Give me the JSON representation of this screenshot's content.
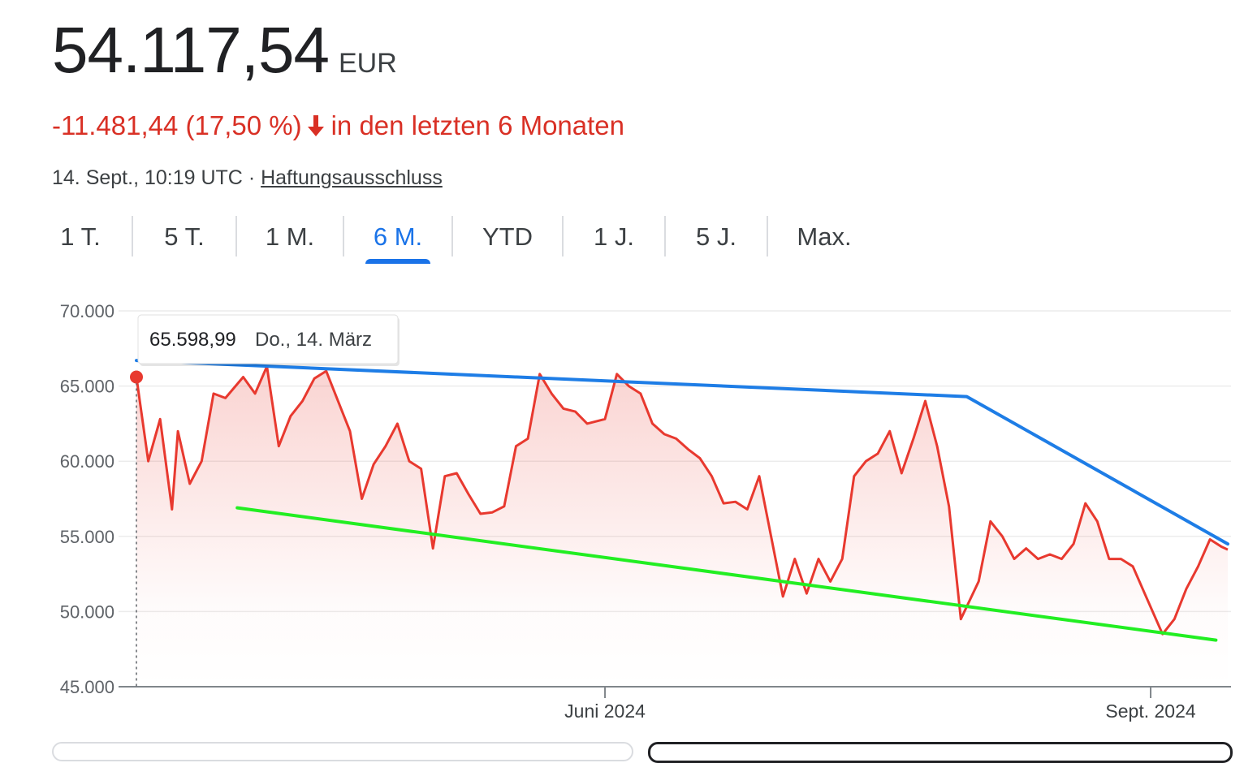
{
  "quote": {
    "price": "54.117,54",
    "currency": "EUR",
    "change": "-11.481,44 (17,50 %)",
    "period_text": "in den letzten 6 Monaten",
    "timestamp": "14. Sept., 10:19 UTC",
    "separator": "·",
    "disclaimer_label": "Haftungsausschluss"
  },
  "icons": {
    "change_arrow": "arrow-down-icon"
  },
  "colors": {
    "negative": "#d93025",
    "accent": "#1a73e8",
    "line": "#e8392f",
    "trend_upper": "#1e7de6",
    "trend_lower": "#22ee22"
  },
  "tabs": [
    {
      "label": "1 T."
    },
    {
      "label": "5 T."
    },
    {
      "label": "1 M."
    },
    {
      "label": "6 M.",
      "active": true
    },
    {
      "label": "YTD"
    },
    {
      "label": "1 J."
    },
    {
      "label": "5 J."
    },
    {
      "label": "Max."
    }
  ],
  "tooltip": {
    "value": "65.598,99",
    "date": "Do., 14. März"
  },
  "chart_data": {
    "type": "line",
    "title": "",
    "xlabel": "",
    "ylabel": "",
    "ylim": [
      45000,
      70000
    ],
    "y_ticks": [
      {
        "value": 70000,
        "label": "70.000"
      },
      {
        "value": 65000,
        "label": "65.000"
      },
      {
        "value": 60000,
        "label": "60.000"
      },
      {
        "value": 55000,
        "label": "55.000"
      },
      {
        "value": 50000,
        "label": "50.000"
      },
      {
        "value": 45000,
        "label": "45.000"
      }
    ],
    "x_range": [
      "2024-03-14",
      "2024-09-14"
    ],
    "x_ticks": [
      {
        "date": "2024-06-01",
        "label": "Juni 2024"
      },
      {
        "date": "2024-09-01",
        "label": "Sept. 2024"
      }
    ],
    "grid": true,
    "area_fill": true,
    "series": [
      {
        "x": [
          "2024-03-14",
          "2024-03-16",
          "2024-03-18",
          "2024-03-20",
          "2024-03-21",
          "2024-03-23",
          "2024-03-25",
          "2024-03-27",
          "2024-03-29",
          "2024-04-01",
          "2024-04-03",
          "2024-04-05",
          "2024-04-07",
          "2024-04-09",
          "2024-04-11",
          "2024-04-13",
          "2024-04-15",
          "2024-04-17",
          "2024-04-19",
          "2024-04-21",
          "2024-04-23",
          "2024-04-25",
          "2024-04-27",
          "2024-04-29",
          "2024-05-01",
          "2024-05-03",
          "2024-05-05",
          "2024-05-07",
          "2024-05-09",
          "2024-05-11",
          "2024-05-13",
          "2024-05-15",
          "2024-05-17",
          "2024-05-19",
          "2024-05-21",
          "2024-05-23",
          "2024-05-25",
          "2024-05-27",
          "2024-05-29",
          "2024-06-01",
          "2024-06-03",
          "2024-06-05",
          "2024-06-07",
          "2024-06-09",
          "2024-06-11",
          "2024-06-13",
          "2024-06-15",
          "2024-06-17",
          "2024-06-19",
          "2024-06-21",
          "2024-06-23",
          "2024-06-25",
          "2024-06-27",
          "2024-06-29",
          "2024-07-01",
          "2024-07-03",
          "2024-07-05",
          "2024-07-07",
          "2024-07-09",
          "2024-07-11",
          "2024-07-13",
          "2024-07-15",
          "2024-07-17",
          "2024-07-19",
          "2024-07-21",
          "2024-07-23",
          "2024-07-25",
          "2024-07-27",
          "2024-07-29",
          "2024-07-31",
          "2024-08-03",
          "2024-08-05",
          "2024-08-07",
          "2024-08-09",
          "2024-08-11",
          "2024-08-13",
          "2024-08-15",
          "2024-08-17",
          "2024-08-19",
          "2024-08-21",
          "2024-08-23",
          "2024-08-25",
          "2024-08-27",
          "2024-08-29",
          "2024-08-31",
          "2024-09-03",
          "2024-09-05",
          "2024-09-07",
          "2024-09-09",
          "2024-09-11",
          "2024-09-13",
          "2024-09-14"
        ],
        "y": [
          65599,
          60000,
          62800,
          56800,
          62000,
          58500,
          60000,
          64500,
          64200,
          65600,
          64500,
          66300,
          61000,
          63000,
          64000,
          65500,
          66000,
          64000,
          62000,
          57500,
          59800,
          61000,
          62500,
          60000,
          59500,
          54200,
          59000,
          59200,
          57800,
          56500,
          56600,
          57000,
          61000,
          61500,
          65800,
          64500,
          63500,
          63300,
          62500,
          62800,
          65800,
          65000,
          64500,
          62500,
          61800,
          61500,
          60800,
          60200,
          59000,
          57200,
          57300,
          56800,
          59000,
          55000,
          51000,
          53500,
          51200,
          53500,
          52000,
          53500,
          59000,
          60000,
          60500,
          62000,
          59200,
          61500,
          64000,
          61000,
          57000,
          49500,
          52000,
          56000,
          55000,
          53500,
          54200,
          53500,
          53800,
          53500,
          54500,
          57200,
          56000,
          53500,
          53500,
          53000,
          51200,
          48500,
          49500,
          51500,
          53000,
          54800,
          54300,
          54118
        ]
      }
    ],
    "trend_lines": [
      {
        "name": "upper",
        "points": [
          [
            "2024-03-14",
            66700
          ],
          [
            "2024-08-01",
            64300
          ],
          [
            "2024-09-14",
            54500
          ]
        ]
      },
      {
        "name": "lower",
        "points": [
          [
            "2024-03-31",
            56900
          ],
          [
            "2024-09-12",
            48100
          ]
        ]
      }
    ]
  }
}
